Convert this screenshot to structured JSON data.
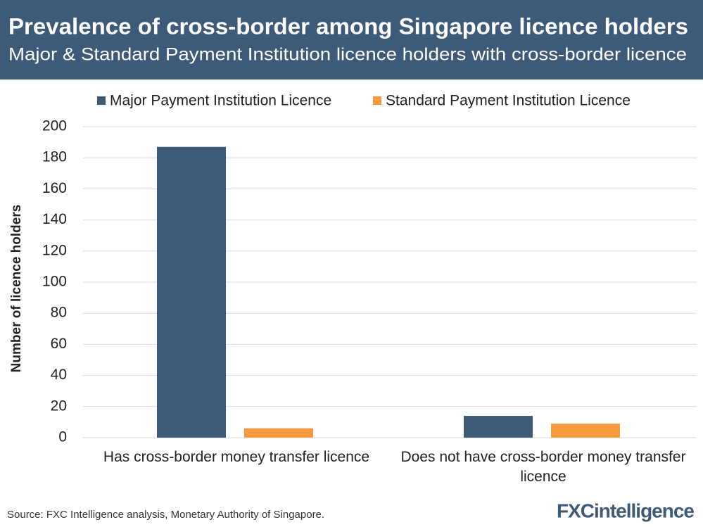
{
  "chart_data": {
    "type": "bar",
    "title": "Prevalence of cross-border among Singapore licence holders",
    "subtitle": "Major & Standard Payment Institution licence holders with cross-border licence",
    "y_label": "Number of licence holders",
    "categories": [
      "Has cross-border money transfer licence",
      "Does not have cross-border money transfer licence"
    ],
    "series": [
      {
        "name": "Major Payment Institution Licence",
        "color": "#3d5a78",
        "values": [
          187,
          14
        ]
      },
      {
        "name": "Standard Payment Institution Licence",
        "color": "#f79a3e",
        "values": [
          6,
          9
        ]
      }
    ],
    "ylim": [
      0,
      200
    ],
    "yticks": [
      0,
      20,
      40,
      60,
      80,
      100,
      120,
      140,
      160,
      180,
      200
    ],
    "grid": true,
    "source": "Source: FXC Intelligence analysis, Monetary Authority of Singapore.",
    "logo": "FXCintelligence"
  }
}
